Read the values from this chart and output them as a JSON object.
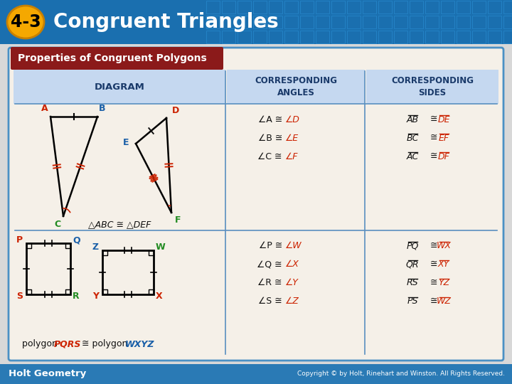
{
  "title_badge": "4-3",
  "title_text": "Congruent Triangles",
  "header_bg": "#1a6faf",
  "header_tile_color": "#2a8fd4",
  "badge_bg": "#f5a800",
  "badge_border": "#c88000",
  "badge_text_color": "#000000",
  "title_text_color": "#ffffff",
  "box_title": "Properties of Congruent Polygons",
  "box_title_bg": "#8b1a1a",
  "box_title_text_color": "#ffffff",
  "box_bg": "#f5f0e8",
  "box_border": "#4a90c4",
  "col_header_bg": "#c5d8f0",
  "col_header_text": "#1a3a6a",
  "col1_label": "DIAGRAM",
  "col2_label": "CORRESPONDING\nANGLES",
  "col3_label": "CORRESPONDING\nSIDES",
  "row1_angles": [
    "∠A ≅ ∠D",
    "∠B ≅ ∠E",
    "∠C ≅ ∠F"
  ],
  "row1_sides_left": [
    "AB",
    "BC",
    "AC"
  ],
  "row1_sides_right": [
    "DE",
    "EF",
    "DF"
  ],
  "row1_caption": "△ABC ≅ △DEF",
  "row2_angles": [
    "∠P ≅ ∠W",
    "∠Q ≅ ∠X",
    "∠R ≅ ∠Y",
    "∠S ≅ ∠Z"
  ],
  "row2_sides_left": [
    "PQ",
    "QR",
    "RS",
    "PS"
  ],
  "row2_sides_right": [
    "WX",
    "XY",
    "YZ",
    "WZ"
  ],
  "row2_caption_plain": "polygon ",
  "row2_caption_c1": "PQRS",
  "row2_caption_mid": " ≅ polygon ",
  "row2_caption_c2": "WXYZ",
  "red_color": "#cc2200",
  "green_color": "#228b22",
  "blue_color": "#1a5fa8",
  "text_black": "#111111",
  "footer_bg": "#2a7ab5",
  "footer_text_left": "Holt Geometry",
  "footer_text_right": "Copyright © by Holt, Rinehart and Winston. All Rights Reserved.",
  "footer_text_color": "#ffffff",
  "bg_color": "#e8e8e8"
}
